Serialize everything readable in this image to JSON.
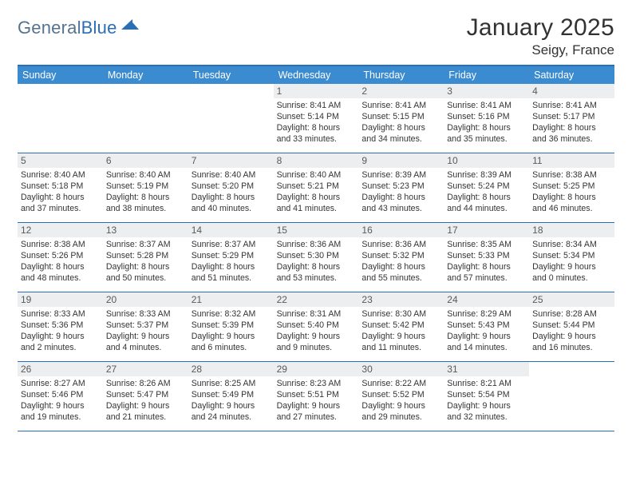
{
  "brand": {
    "text_general": "General",
    "text_blue": "Blue"
  },
  "title": {
    "month": "January 2025",
    "location": "Seigy, France"
  },
  "colors": {
    "header_bg": "#3b8bd1",
    "rule": "#2a6fb5",
    "daynum_bg": "#eceeef",
    "text": "#343434",
    "logo_gray": "#6a7b8a",
    "logo_blue": "#2a6fb5"
  },
  "days_of_week": [
    "Sunday",
    "Monday",
    "Tuesday",
    "Wednesday",
    "Thursday",
    "Friday",
    "Saturday"
  ],
  "weeks": [
    [
      {
        "n": "",
        "sunrise": "",
        "sunset": "",
        "daylight": ""
      },
      {
        "n": "",
        "sunrise": "",
        "sunset": "",
        "daylight": ""
      },
      {
        "n": "",
        "sunrise": "",
        "sunset": "",
        "daylight": ""
      },
      {
        "n": "1",
        "sunrise": "Sunrise: 8:41 AM",
        "sunset": "Sunset: 5:14 PM",
        "daylight": "Daylight: 8 hours and 33 minutes."
      },
      {
        "n": "2",
        "sunrise": "Sunrise: 8:41 AM",
        "sunset": "Sunset: 5:15 PM",
        "daylight": "Daylight: 8 hours and 34 minutes."
      },
      {
        "n": "3",
        "sunrise": "Sunrise: 8:41 AM",
        "sunset": "Sunset: 5:16 PM",
        "daylight": "Daylight: 8 hours and 35 minutes."
      },
      {
        "n": "4",
        "sunrise": "Sunrise: 8:41 AM",
        "sunset": "Sunset: 5:17 PM",
        "daylight": "Daylight: 8 hours and 36 minutes."
      }
    ],
    [
      {
        "n": "5",
        "sunrise": "Sunrise: 8:40 AM",
        "sunset": "Sunset: 5:18 PM",
        "daylight": "Daylight: 8 hours and 37 minutes."
      },
      {
        "n": "6",
        "sunrise": "Sunrise: 8:40 AM",
        "sunset": "Sunset: 5:19 PM",
        "daylight": "Daylight: 8 hours and 38 minutes."
      },
      {
        "n": "7",
        "sunrise": "Sunrise: 8:40 AM",
        "sunset": "Sunset: 5:20 PM",
        "daylight": "Daylight: 8 hours and 40 minutes."
      },
      {
        "n": "8",
        "sunrise": "Sunrise: 8:40 AM",
        "sunset": "Sunset: 5:21 PM",
        "daylight": "Daylight: 8 hours and 41 minutes."
      },
      {
        "n": "9",
        "sunrise": "Sunrise: 8:39 AM",
        "sunset": "Sunset: 5:23 PM",
        "daylight": "Daylight: 8 hours and 43 minutes."
      },
      {
        "n": "10",
        "sunrise": "Sunrise: 8:39 AM",
        "sunset": "Sunset: 5:24 PM",
        "daylight": "Daylight: 8 hours and 44 minutes."
      },
      {
        "n": "11",
        "sunrise": "Sunrise: 8:38 AM",
        "sunset": "Sunset: 5:25 PM",
        "daylight": "Daylight: 8 hours and 46 minutes."
      }
    ],
    [
      {
        "n": "12",
        "sunrise": "Sunrise: 8:38 AM",
        "sunset": "Sunset: 5:26 PM",
        "daylight": "Daylight: 8 hours and 48 minutes."
      },
      {
        "n": "13",
        "sunrise": "Sunrise: 8:37 AM",
        "sunset": "Sunset: 5:28 PM",
        "daylight": "Daylight: 8 hours and 50 minutes."
      },
      {
        "n": "14",
        "sunrise": "Sunrise: 8:37 AM",
        "sunset": "Sunset: 5:29 PM",
        "daylight": "Daylight: 8 hours and 51 minutes."
      },
      {
        "n": "15",
        "sunrise": "Sunrise: 8:36 AM",
        "sunset": "Sunset: 5:30 PM",
        "daylight": "Daylight: 8 hours and 53 minutes."
      },
      {
        "n": "16",
        "sunrise": "Sunrise: 8:36 AM",
        "sunset": "Sunset: 5:32 PM",
        "daylight": "Daylight: 8 hours and 55 minutes."
      },
      {
        "n": "17",
        "sunrise": "Sunrise: 8:35 AM",
        "sunset": "Sunset: 5:33 PM",
        "daylight": "Daylight: 8 hours and 57 minutes."
      },
      {
        "n": "18",
        "sunrise": "Sunrise: 8:34 AM",
        "sunset": "Sunset: 5:34 PM",
        "daylight": "Daylight: 9 hours and 0 minutes."
      }
    ],
    [
      {
        "n": "19",
        "sunrise": "Sunrise: 8:33 AM",
        "sunset": "Sunset: 5:36 PM",
        "daylight": "Daylight: 9 hours and 2 minutes."
      },
      {
        "n": "20",
        "sunrise": "Sunrise: 8:33 AM",
        "sunset": "Sunset: 5:37 PM",
        "daylight": "Daylight: 9 hours and 4 minutes."
      },
      {
        "n": "21",
        "sunrise": "Sunrise: 8:32 AM",
        "sunset": "Sunset: 5:39 PM",
        "daylight": "Daylight: 9 hours and 6 minutes."
      },
      {
        "n": "22",
        "sunrise": "Sunrise: 8:31 AM",
        "sunset": "Sunset: 5:40 PM",
        "daylight": "Daylight: 9 hours and 9 minutes."
      },
      {
        "n": "23",
        "sunrise": "Sunrise: 8:30 AM",
        "sunset": "Sunset: 5:42 PM",
        "daylight": "Daylight: 9 hours and 11 minutes."
      },
      {
        "n": "24",
        "sunrise": "Sunrise: 8:29 AM",
        "sunset": "Sunset: 5:43 PM",
        "daylight": "Daylight: 9 hours and 14 minutes."
      },
      {
        "n": "25",
        "sunrise": "Sunrise: 8:28 AM",
        "sunset": "Sunset: 5:44 PM",
        "daylight": "Daylight: 9 hours and 16 minutes."
      }
    ],
    [
      {
        "n": "26",
        "sunrise": "Sunrise: 8:27 AM",
        "sunset": "Sunset: 5:46 PM",
        "daylight": "Daylight: 9 hours and 19 minutes."
      },
      {
        "n": "27",
        "sunrise": "Sunrise: 8:26 AM",
        "sunset": "Sunset: 5:47 PM",
        "daylight": "Daylight: 9 hours and 21 minutes."
      },
      {
        "n": "28",
        "sunrise": "Sunrise: 8:25 AM",
        "sunset": "Sunset: 5:49 PM",
        "daylight": "Daylight: 9 hours and 24 minutes."
      },
      {
        "n": "29",
        "sunrise": "Sunrise: 8:23 AM",
        "sunset": "Sunset: 5:51 PM",
        "daylight": "Daylight: 9 hours and 27 minutes."
      },
      {
        "n": "30",
        "sunrise": "Sunrise: 8:22 AM",
        "sunset": "Sunset: 5:52 PM",
        "daylight": "Daylight: 9 hours and 29 minutes."
      },
      {
        "n": "31",
        "sunrise": "Sunrise: 8:21 AM",
        "sunset": "Sunset: 5:54 PM",
        "daylight": "Daylight: 9 hours and 32 minutes."
      },
      {
        "n": "",
        "sunrise": "",
        "sunset": "",
        "daylight": ""
      }
    ]
  ]
}
